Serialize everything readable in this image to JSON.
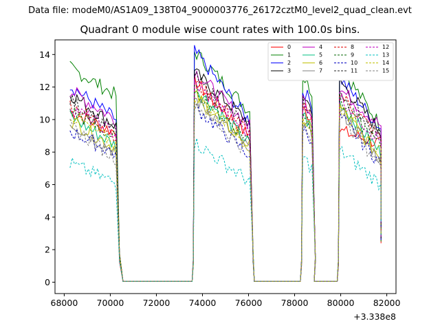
{
  "header": {
    "file_label": "Data file: modeM0/AS1A09_138T04_9000003776_26172cztM0_level2_quad_clean.evt"
  },
  "chart_data": {
    "type": "line",
    "title": "Quadrant 0 module wise count rates with 100.0s bins.",
    "xlabel": "",
    "ylabel": "",
    "x_offset_label": "+3.338e8",
    "xlim": [
      67600,
      82400
    ],
    "ylim": [
      -0.7,
      14.9
    ],
    "xticks": [
      68000,
      70000,
      72000,
      74000,
      76000,
      78000,
      80000,
      82000
    ],
    "yticks": [
      0,
      2,
      4,
      6,
      8,
      10,
      12,
      14
    ],
    "legend_position": "top-right",
    "segments": [
      {
        "start": 68250,
        "end": 70250,
        "drop_end": 70550
      },
      {
        "start": 73650,
        "end": 76050,
        "drop_end": 76250
      },
      {
        "start": 78350,
        "end": 78750,
        "drop_end": 78850
      },
      {
        "start": 79950,
        "end": 81750,
        "drop_end": 81750
      }
    ],
    "gaps": [
      [
        70550,
        73550
      ],
      [
        76250,
        78250
      ],
      [
        78850,
        79850
      ]
    ],
    "series": [
      {
        "name": "0",
        "color": "#ff0000",
        "dash": "solid",
        "seg_start": [
          10.5,
          12.4,
          10.6,
          9.3
        ],
        "seg_end": [
          9.2,
          8.9,
          10.1,
          8.5
        ]
      },
      {
        "name": "1",
        "color": "#008000",
        "dash": "solid",
        "seg_start": [
          13.2,
          14.2,
          12.7,
          13.3
        ],
        "seg_end": [
          11.5,
          10.5,
          11.7,
          9.6
        ]
      },
      {
        "name": "2",
        "color": "#0000ff",
        "dash": "solid",
        "seg_start": [
          12.1,
          14.2,
          11.8,
          12.6
        ],
        "seg_end": [
          10.0,
          9.9,
          11.0,
          9.4
        ]
      },
      {
        "name": "3",
        "color": "#000000",
        "dash": "solid",
        "seg_start": [
          11.6,
          12.9,
          11.6,
          12.4
        ],
        "seg_end": [
          9.6,
          9.8,
          10.6,
          9.2
        ]
      },
      {
        "name": "4",
        "color": "#bf00bf",
        "dash": "solid",
        "seg_start": [
          11.8,
          13.0,
          11.3,
          11.9
        ],
        "seg_end": [
          10.0,
          9.6,
          10.4,
          9.6
        ]
      },
      {
        "name": "5",
        "color": "#00bf80",
        "dash": "solid",
        "seg_start": [
          10.2,
          12.0,
          10.4,
          11.1
        ],
        "seg_end": [
          8.4,
          8.5,
          9.4,
          7.9
        ]
      },
      {
        "name": "6",
        "color": "#bfbf00",
        "dash": "solid",
        "seg_start": [
          10.0,
          11.5,
          10.0,
          10.8
        ],
        "seg_end": [
          8.2,
          8.4,
          9.2,
          7.6
        ]
      },
      {
        "name": "7",
        "color": "#808080",
        "dash": "solid",
        "seg_start": [
          9.8,
          11.3,
          9.8,
          10.6
        ],
        "seg_end": [
          8.0,
          8.2,
          9.0,
          7.5
        ]
      },
      {
        "name": "8",
        "color": "#e00000",
        "dash": "dashed",
        "seg_start": [
          11.0,
          12.3,
          10.8,
          11.6
        ],
        "seg_end": [
          9.0,
          9.2,
          10.0,
          8.8
        ]
      },
      {
        "name": "9",
        "color": "#006400",
        "dash": "dashed",
        "seg_start": [
          10.6,
          11.8,
          10.5,
          11.2
        ],
        "seg_end": [
          8.8,
          8.7,
          9.6,
          8.3
        ]
      },
      {
        "name": "10",
        "color": "#0000c0",
        "dash": "dashed",
        "seg_start": [
          9.3,
          10.8,
          9.5,
          10.2
        ],
        "seg_end": [
          7.9,
          7.8,
          8.8,
          7.3
        ]
      },
      {
        "name": "11",
        "color": "#202020",
        "dash": "dashed",
        "seg_start": [
          11.2,
          12.6,
          11.2,
          11.8
        ],
        "seg_end": [
          9.3,
          9.4,
          10.3,
          8.9
        ]
      },
      {
        "name": "12",
        "color": "#bf00bf",
        "dash": "dashed",
        "seg_start": [
          10.8,
          12.2,
          10.8,
          11.4
        ],
        "seg_end": [
          9.1,
          9.1,
          10.0,
          8.6
        ]
      },
      {
        "name": "13",
        "color": "#00bfbf",
        "dash": "dashed",
        "seg_start": [
          7.3,
          8.6,
          7.7,
          8.1
        ],
        "seg_end": [
          6.1,
          6.2,
          7.0,
          6.0
        ]
      },
      {
        "name": "14",
        "color": "#bfbf00",
        "dash": "dashed",
        "seg_start": [
          10.3,
          11.4,
          10.2,
          10.8
        ],
        "seg_end": [
          8.5,
          8.4,
          9.3,
          7.9
        ]
      },
      {
        "name": "15",
        "color": "#808080",
        "dash": "dashed",
        "seg_start": [
          9.6,
          11.0,
          9.7,
          10.4
        ],
        "seg_end": [
          7.6,
          7.9,
          8.8,
          7.1
        ]
      }
    ]
  }
}
